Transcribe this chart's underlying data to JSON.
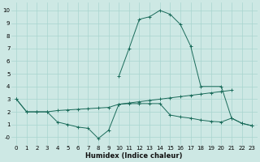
{
  "xlabel": "Humidex (Indice chaleur)",
  "background_color": "#cde8e4",
  "grid_color": "#a8d5cf",
  "line_color": "#1a6b5a",
  "xlim": [
    -0.5,
    23.5
  ],
  "ylim": [
    -0.6,
    10.6
  ],
  "xticks": [
    0,
    1,
    2,
    3,
    4,
    5,
    6,
    7,
    8,
    9,
    10,
    11,
    12,
    13,
    14,
    15,
    16,
    17,
    18,
    19,
    20,
    21,
    22,
    23
  ],
  "yticks": [
    0,
    1,
    2,
    3,
    4,
    5,
    6,
    7,
    8,
    9,
    10
  ],
  "ytick_labels": [
    "-0",
    "1",
    "2",
    "3",
    "4",
    "5",
    "6",
    "7",
    "8",
    "9",
    "10"
  ],
  "line_peak_x": [
    10,
    11,
    12,
    13,
    14,
    15,
    16,
    17,
    18,
    20,
    21,
    22,
    23
  ],
  "line_peak_y": [
    4.8,
    7.0,
    9.3,
    9.5,
    10.0,
    9.7,
    8.9,
    7.2,
    4.0,
    4.0,
    1.5,
    1.1,
    0.9
  ],
  "line_rise_x": [
    0,
    1,
    2,
    3,
    4,
    5,
    6,
    7,
    8,
    9,
    10,
    11,
    12,
    13,
    14,
    15,
    16,
    17,
    18,
    19,
    20,
    21,
    22,
    23
  ],
  "line_rise_y": [
    3.0,
    2.0,
    2.0,
    2.0,
    2.1,
    2.15,
    2.2,
    2.25,
    2.3,
    2.35,
    2.6,
    2.7,
    2.8,
    2.9,
    3.0,
    3.1,
    3.2,
    3.3,
    3.4,
    3.5,
    3.6,
    3.7,
    null,
    null
  ],
  "line_low_x": [
    0,
    1,
    2,
    3,
    4,
    5,
    6,
    7,
    8,
    9,
    10,
    11,
    12,
    13,
    14,
    15,
    16,
    17,
    18,
    19,
    20,
    21,
    22,
    23
  ],
  "line_low_y": [
    3.0,
    2.0,
    2.0,
    2.0,
    1.2,
    1.0,
    0.8,
    0.7,
    -0.1,
    0.55,
    2.6,
    2.65,
    2.65,
    2.65,
    2.65,
    1.75,
    1.6,
    1.5,
    1.35,
    1.25,
    1.2,
    1.5,
    1.1,
    0.9
  ]
}
